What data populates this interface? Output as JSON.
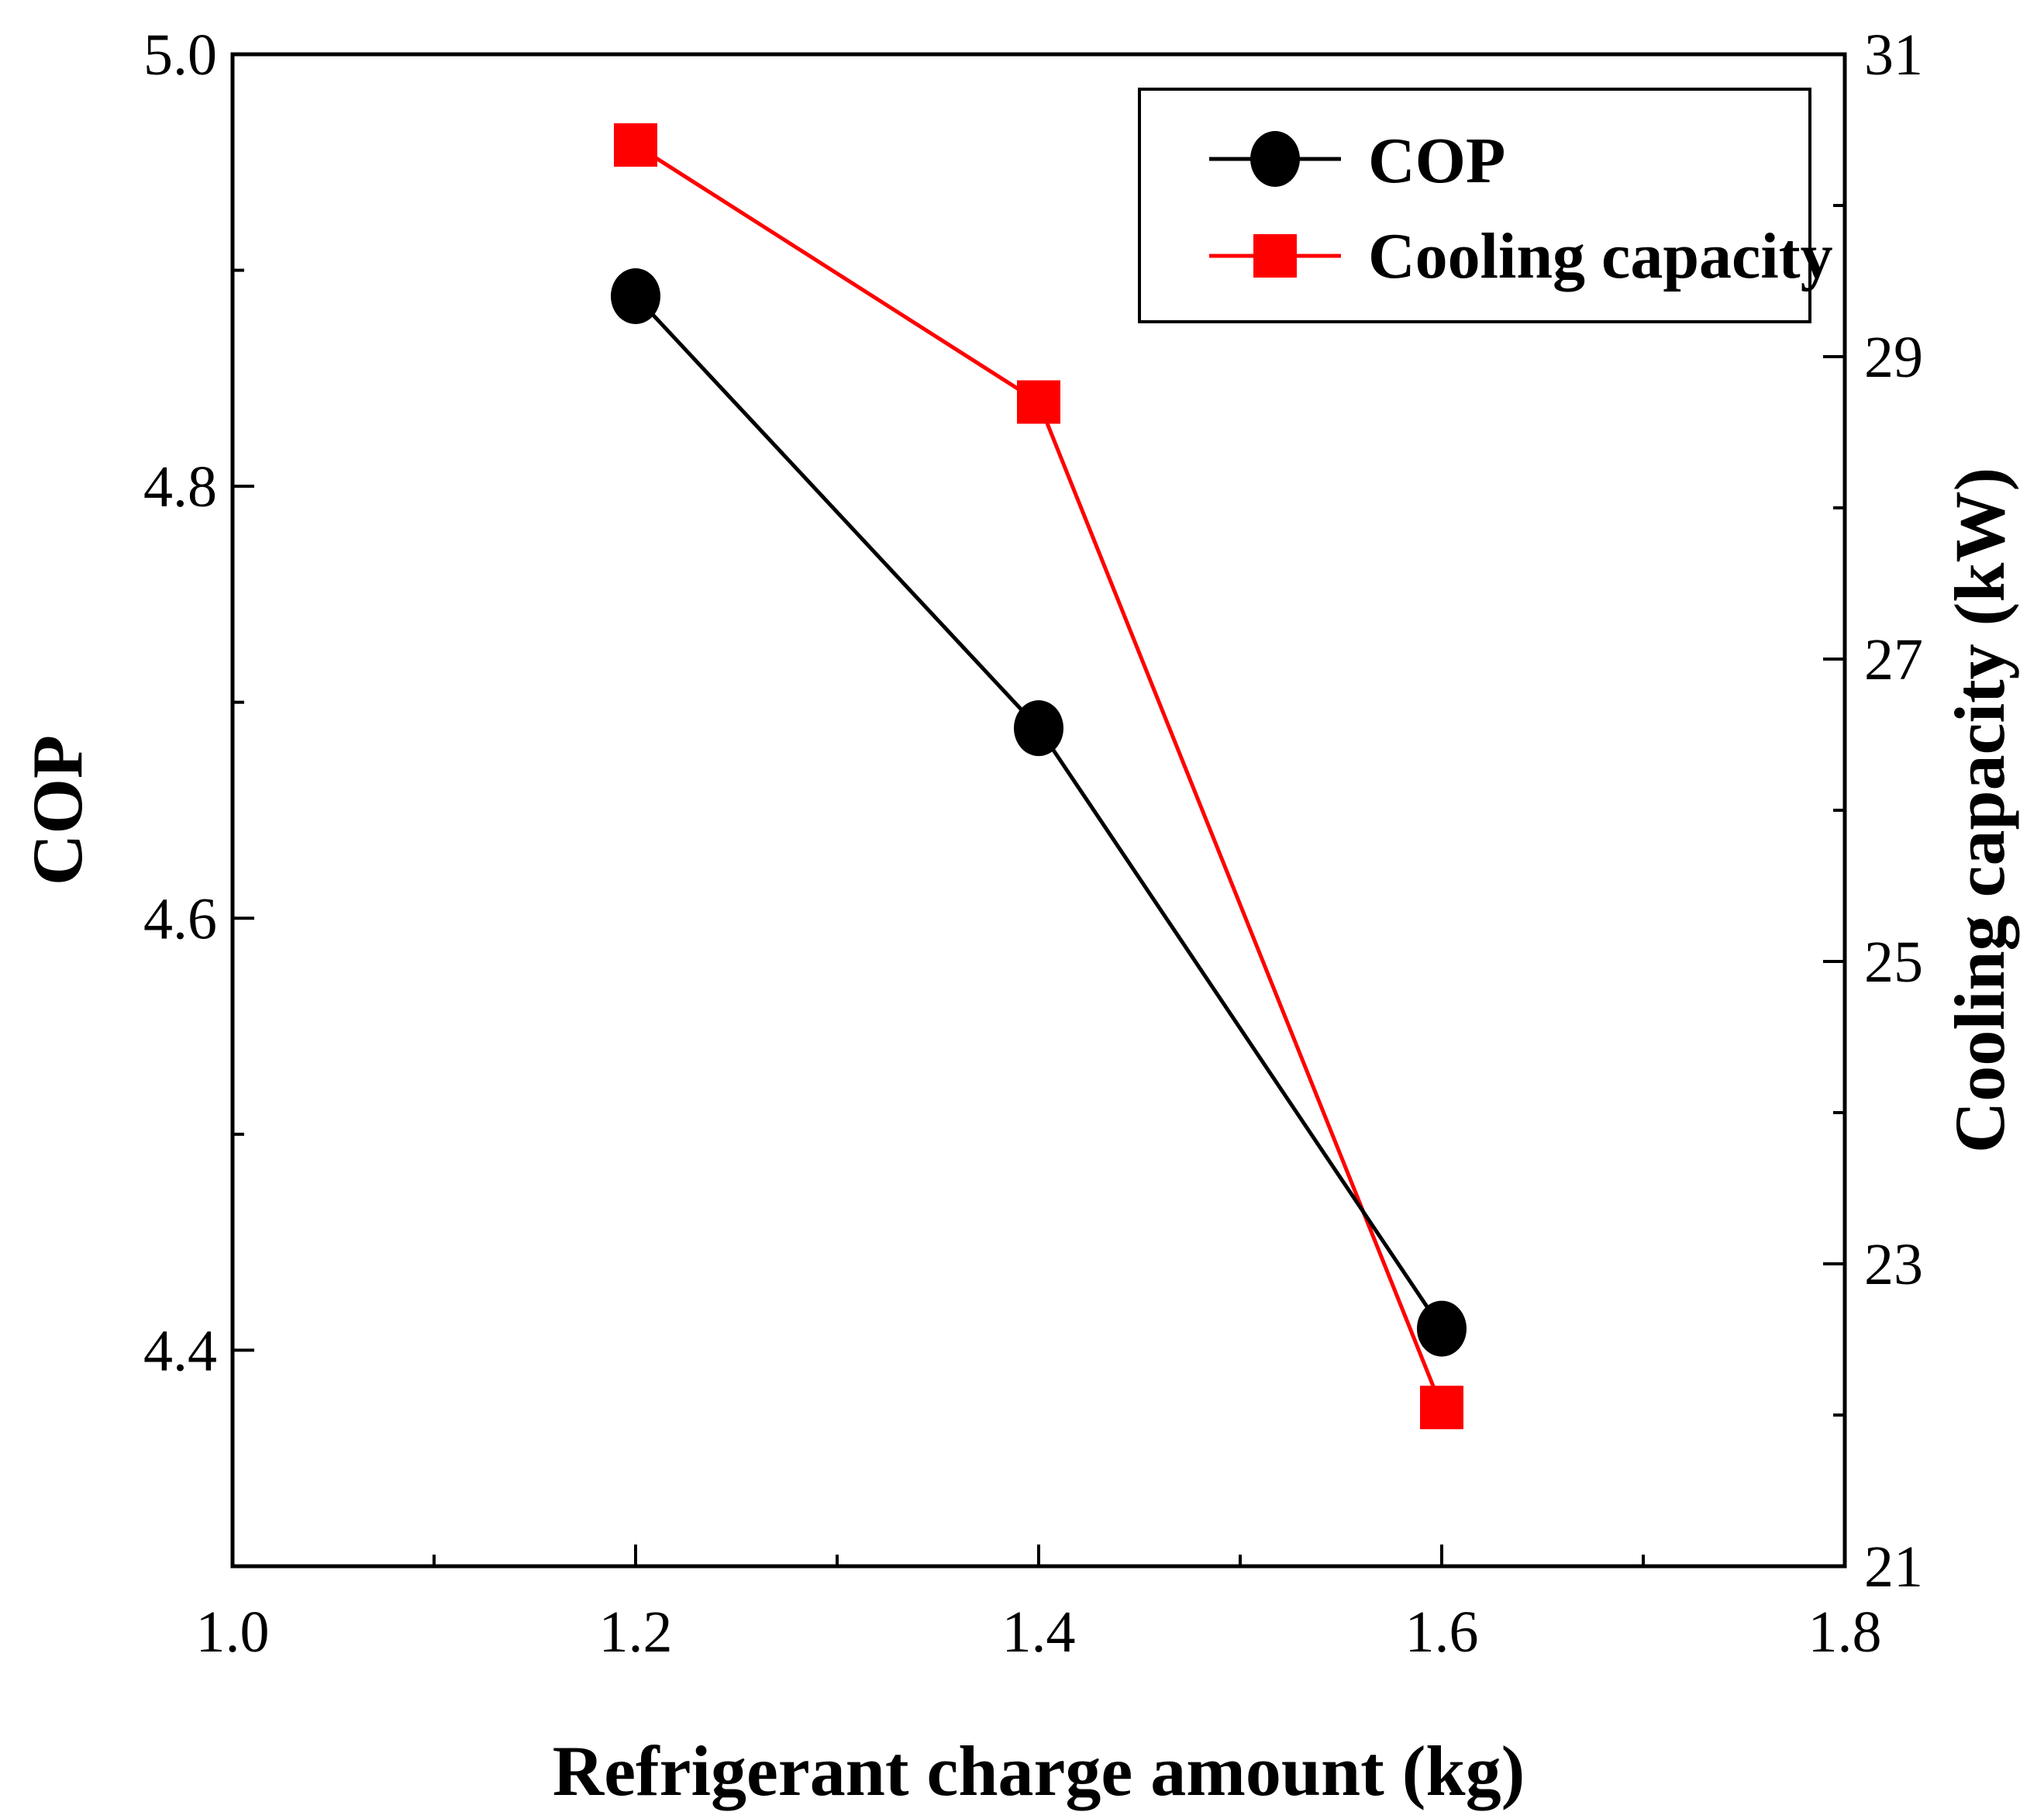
{
  "chart_data": {
    "type": "line",
    "title": "",
    "xlabel": "Refrigerant charge amount (kg)",
    "ylabel": "COP",
    "y2label": "Cooling capacity (kW)",
    "xlim": [
      1.0,
      1.8
    ],
    "ylim": [
      4.3,
      5.0
    ],
    "y2lim": [
      21,
      31
    ],
    "x_ticks": [
      "1.0",
      "1.2",
      "1.4",
      "1.6",
      "1.8"
    ],
    "y_ticks": [
      "4.4",
      "4.6",
      "4.8",
      "5.0"
    ],
    "y2_ticks": [
      "21",
      "23",
      "25",
      "27",
      "29",
      "31"
    ],
    "grid": false,
    "legend_position": "top-right",
    "series": [
      {
        "name": "COP",
        "axis": "left",
        "color": "#000000",
        "marker": "circle",
        "x": [
          1.2,
          1.4,
          1.6
        ],
        "values": [
          4.888,
          4.688,
          4.41
        ]
      },
      {
        "name": "Cooling capacity",
        "axis": "right",
        "color": "#ff0000",
        "marker": "square",
        "x": [
          1.2,
          1.4,
          1.6
        ],
        "values": [
          30.4,
          28.7,
          22.05
        ]
      }
    ]
  }
}
